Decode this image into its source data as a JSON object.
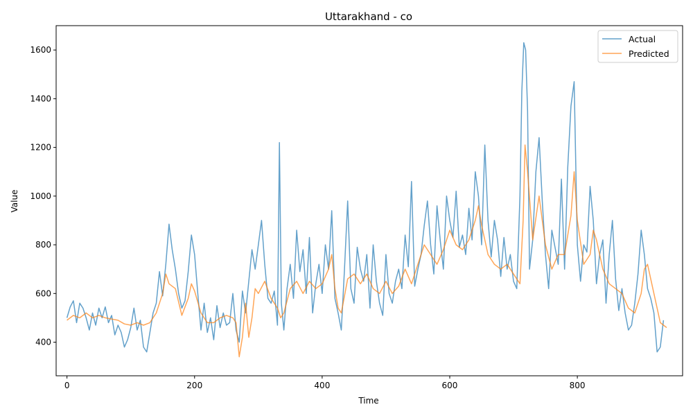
{
  "chart_data": {
    "type": "line",
    "title": "Uttarakhand - co",
    "xlabel": "Time",
    "ylabel": "Value",
    "xlim": [
      -17,
      965
    ],
    "ylim": [
      262,
      1700
    ],
    "xticks": [
      0,
      200,
      400,
      600,
      800
    ],
    "yticks": [
      400,
      600,
      800,
      1000,
      1200,
      1400,
      1600
    ],
    "grid": false,
    "legend_position": "top-right",
    "series": [
      {
        "name": "Actual",
        "color": "#1f77b4",
        "opacity": 0.7,
        "points": [
          [
            0,
            500
          ],
          [
            5,
            545
          ],
          [
            10,
            570
          ],
          [
            15,
            480
          ],
          [
            20,
            560
          ],
          [
            25,
            540
          ],
          [
            30,
            500
          ],
          [
            35,
            450
          ],
          [
            40,
            520
          ],
          [
            45,
            470
          ],
          [
            50,
            540
          ],
          [
            55,
            500
          ],
          [
            60,
            545
          ],
          [
            65,
            480
          ],
          [
            70,
            510
          ],
          [
            75,
            430
          ],
          [
            80,
            470
          ],
          [
            85,
            440
          ],
          [
            90,
            380
          ],
          [
            95,
            410
          ],
          [
            100,
            460
          ],
          [
            105,
            540
          ],
          [
            110,
            450
          ],
          [
            115,
            490
          ],
          [
            120,
            380
          ],
          [
            125,
            360
          ],
          [
            130,
            440
          ],
          [
            135,
            520
          ],
          [
            140,
            560
          ],
          [
            145,
            690
          ],
          [
            150,
            590
          ],
          [
            155,
            720
          ],
          [
            160,
            885
          ],
          [
            165,
            780
          ],
          [
            170,
            700
          ],
          [
            175,
            600
          ],
          [
            180,
            540
          ],
          [
            185,
            570
          ],
          [
            190,
            690
          ],
          [
            195,
            840
          ],
          [
            200,
            760
          ],
          [
            205,
            600
          ],
          [
            210,
            450
          ],
          [
            215,
            560
          ],
          [
            220,
            440
          ],
          [
            225,
            500
          ],
          [
            230,
            410
          ],
          [
            235,
            550
          ],
          [
            240,
            460
          ],
          [
            245,
            520
          ],
          [
            250,
            470
          ],
          [
            255,
            480
          ],
          [
            260,
            600
          ],
          [
            265,
            450
          ],
          [
            270,
            400
          ],
          [
            275,
            610
          ],
          [
            280,
            520
          ],
          [
            285,
            650
          ],
          [
            290,
            780
          ],
          [
            295,
            700
          ],
          [
            300,
            800
          ],
          [
            305,
            900
          ],
          [
            310,
            720
          ],
          [
            315,
            580
          ],
          [
            320,
            560
          ],
          [
            325,
            610
          ],
          [
            330,
            470
          ],
          [
            333,
            1220
          ],
          [
            336,
            560
          ],
          [
            340,
            450
          ],
          [
            345,
            620
          ],
          [
            350,
            720
          ],
          [
            355,
            580
          ],
          [
            360,
            860
          ],
          [
            365,
            690
          ],
          [
            370,
            780
          ],
          [
            375,
            600
          ],
          [
            380,
            830
          ],
          [
            385,
            520
          ],
          [
            390,
            640
          ],
          [
            395,
            720
          ],
          [
            400,
            600
          ],
          [
            405,
            800
          ],
          [
            410,
            700
          ],
          [
            415,
            940
          ],
          [
            420,
            580
          ],
          [
            425,
            520
          ],
          [
            430,
            450
          ],
          [
            435,
            700
          ],
          [
            440,
            980
          ],
          [
            445,
            620
          ],
          [
            450,
            560
          ],
          [
            455,
            790
          ],
          [
            460,
            700
          ],
          [
            465,
            650
          ],
          [
            470,
            760
          ],
          [
            475,
            540
          ],
          [
            480,
            800
          ],
          [
            485,
            650
          ],
          [
            490,
            560
          ],
          [
            495,
            510
          ],
          [
            500,
            760
          ],
          [
            505,
            600
          ],
          [
            510,
            560
          ],
          [
            515,
            650
          ],
          [
            520,
            700
          ],
          [
            525,
            620
          ],
          [
            530,
            840
          ],
          [
            535,
            710
          ],
          [
            540,
            1060
          ],
          [
            545,
            630
          ],
          [
            550,
            700
          ],
          [
            555,
            760
          ],
          [
            560,
            880
          ],
          [
            565,
            980
          ],
          [
            570,
            800
          ],
          [
            575,
            680
          ],
          [
            580,
            960
          ],
          [
            585,
            820
          ],
          [
            590,
            700
          ],
          [
            595,
            1000
          ],
          [
            600,
            900
          ],
          [
            605,
            830
          ],
          [
            610,
            1020
          ],
          [
            615,
            790
          ],
          [
            620,
            840
          ],
          [
            625,
            760
          ],
          [
            630,
            950
          ],
          [
            635,
            820
          ],
          [
            640,
            1100
          ],
          [
            645,
            1000
          ],
          [
            650,
            800
          ],
          [
            655,
            1210
          ],
          [
            660,
            900
          ],
          [
            665,
            750
          ],
          [
            670,
            900
          ],
          [
            675,
            820
          ],
          [
            680,
            670
          ],
          [
            685,
            830
          ],
          [
            690,
            700
          ],
          [
            695,
            760
          ],
          [
            700,
            650
          ],
          [
            705,
            620
          ],
          [
            710,
            1000
          ],
          [
            713,
            1430
          ],
          [
            716,
            1630
          ],
          [
            719,
            1600
          ],
          [
            722,
            1350
          ],
          [
            725,
            700
          ],
          [
            730,
            820
          ],
          [
            735,
            1100
          ],
          [
            740,
            1240
          ],
          [
            745,
            980
          ],
          [
            750,
            760
          ],
          [
            755,
            620
          ],
          [
            760,
            860
          ],
          [
            765,
            790
          ],
          [
            770,
            720
          ],
          [
            775,
            1070
          ],
          [
            780,
            700
          ],
          [
            785,
            1120
          ],
          [
            790,
            1370
          ],
          [
            795,
            1470
          ],
          [
            800,
            800
          ],
          [
            805,
            650
          ],
          [
            810,
            800
          ],
          [
            815,
            770
          ],
          [
            820,
            1040
          ],
          [
            825,
            900
          ],
          [
            830,
            640
          ],
          [
            835,
            760
          ],
          [
            840,
            820
          ],
          [
            845,
            560
          ],
          [
            850,
            760
          ],
          [
            855,
            900
          ],
          [
            860,
            660
          ],
          [
            865,
            530
          ],
          [
            870,
            620
          ],
          [
            875,
            520
          ],
          [
            880,
            450
          ],
          [
            885,
            470
          ],
          [
            890,
            560
          ],
          [
            895,
            680
          ],
          [
            900,
            860
          ],
          [
            905,
            760
          ],
          [
            910,
            620
          ],
          [
            915,
            580
          ],
          [
            920,
            520
          ],
          [
            925,
            360
          ],
          [
            930,
            380
          ],
          [
            935,
            490
          ]
        ]
      },
      {
        "name": "Predicted",
        "color": "#ff7f0e",
        "opacity": 0.7,
        "points": [
          [
            0,
            490
          ],
          [
            10,
            510
          ],
          [
            20,
            500
          ],
          [
            30,
            520
          ],
          [
            40,
            500
          ],
          [
            50,
            510
          ],
          [
            60,
            500
          ],
          [
            70,
            495
          ],
          [
            80,
            490
          ],
          [
            90,
            475
          ],
          [
            100,
            470
          ],
          [
            110,
            480
          ],
          [
            120,
            470
          ],
          [
            130,
            480
          ],
          [
            140,
            520
          ],
          [
            150,
            600
          ],
          [
            155,
            680
          ],
          [
            160,
            640
          ],
          [
            170,
            620
          ],
          [
            180,
            510
          ],
          [
            190,
            580
          ],
          [
            195,
            640
          ],
          [
            200,
            610
          ],
          [
            210,
            520
          ],
          [
            220,
            480
          ],
          [
            230,
            480
          ],
          [
            240,
            500
          ],
          [
            250,
            510
          ],
          [
            260,
            500
          ],
          [
            265,
            480
          ],
          [
            270,
            340
          ],
          [
            275,
            420
          ],
          [
            280,
            560
          ],
          [
            285,
            420
          ],
          [
            290,
            500
          ],
          [
            295,
            620
          ],
          [
            300,
            600
          ],
          [
            310,
            650
          ],
          [
            320,
            580
          ],
          [
            330,
            540
          ],
          [
            335,
            500
          ],
          [
            340,
            520
          ],
          [
            350,
            620
          ],
          [
            360,
            650
          ],
          [
            370,
            600
          ],
          [
            380,
            650
          ],
          [
            390,
            620
          ],
          [
            400,
            640
          ],
          [
            410,
            700
          ],
          [
            415,
            760
          ],
          [
            420,
            620
          ],
          [
            425,
            540
          ],
          [
            430,
            520
          ],
          [
            440,
            660
          ],
          [
            450,
            680
          ],
          [
            460,
            640
          ],
          [
            470,
            680
          ],
          [
            480,
            620
          ],
          [
            490,
            600
          ],
          [
            500,
            650
          ],
          [
            510,
            600
          ],
          [
            520,
            630
          ],
          [
            530,
            700
          ],
          [
            540,
            640
          ],
          [
            550,
            720
          ],
          [
            560,
            800
          ],
          [
            570,
            760
          ],
          [
            580,
            720
          ],
          [
            590,
            780
          ],
          [
            600,
            860
          ],
          [
            610,
            800
          ],
          [
            620,
            780
          ],
          [
            630,
            820
          ],
          [
            640,
            900
          ],
          [
            645,
            960
          ],
          [
            650,
            880
          ],
          [
            655,
            820
          ],
          [
            660,
            760
          ],
          [
            670,
            720
          ],
          [
            680,
            700
          ],
          [
            690,
            720
          ],
          [
            700,
            680
          ],
          [
            710,
            640
          ],
          [
            715,
            900
          ],
          [
            718,
            1210
          ],
          [
            722,
            1100
          ],
          [
            730,
            820
          ],
          [
            740,
            1000
          ],
          [
            750,
            800
          ],
          [
            760,
            700
          ],
          [
            770,
            760
          ],
          [
            780,
            760
          ],
          [
            790,
            920
          ],
          [
            795,
            1100
          ],
          [
            800,
            900
          ],
          [
            810,
            720
          ],
          [
            820,
            760
          ],
          [
            825,
            860
          ],
          [
            830,
            820
          ],
          [
            840,
            700
          ],
          [
            850,
            640
          ],
          [
            860,
            620
          ],
          [
            870,
            600
          ],
          [
            880,
            540
          ],
          [
            890,
            520
          ],
          [
            900,
            600
          ],
          [
            905,
            700
          ],
          [
            910,
            720
          ],
          [
            920,
            600
          ],
          [
            930,
            480
          ],
          [
            940,
            460
          ]
        ]
      }
    ]
  }
}
